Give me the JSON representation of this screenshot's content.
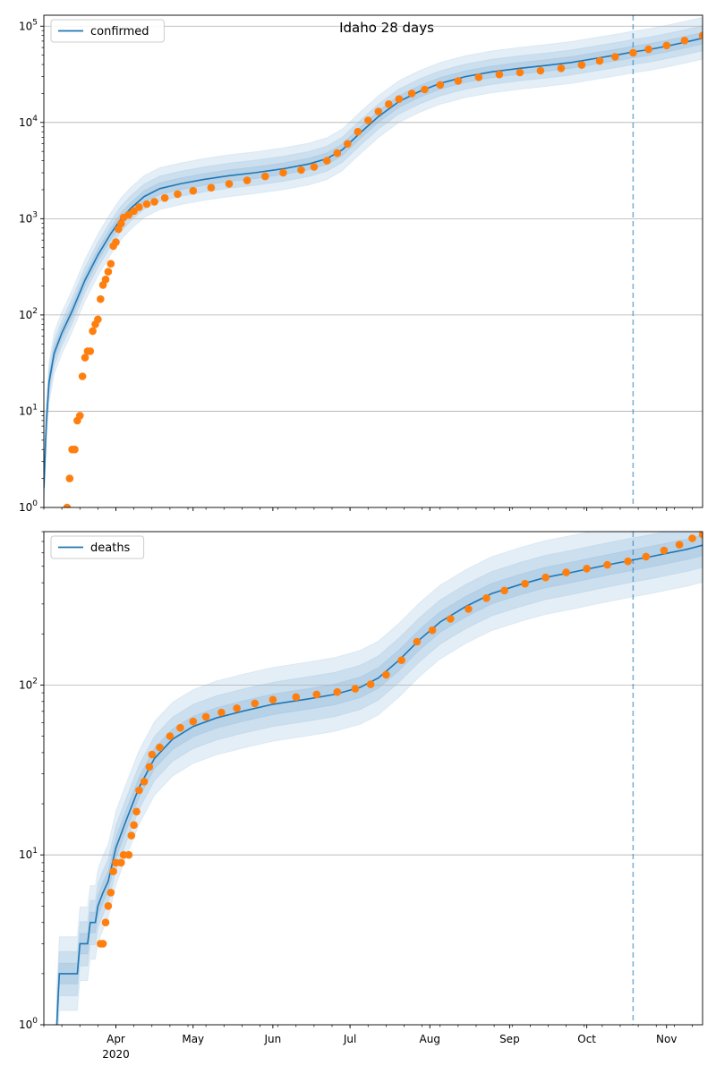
{
  "chart_data": [
    {
      "type": "line",
      "title": "Idaho 28 days",
      "legend": {
        "label": "confirmed",
        "placement": "top-left"
      },
      "y_scale": "log",
      "ylim": [
        1,
        130000
      ],
      "y_ticks": [
        {
          "base": "10",
          "exp": "0",
          "value": 1
        },
        {
          "base": "10",
          "exp": "1",
          "value": 10
        },
        {
          "base": "10",
          "exp": "2",
          "value": 100
        },
        {
          "base": "10",
          "exp": "3",
          "value": 1000
        },
        {
          "base": "10",
          "exp": "4",
          "value": 10000
        },
        {
          "base": "10",
          "exp": "5",
          "value": 100000
        }
      ],
      "xlim": [
        "2020-03-04",
        "2020-11-15"
      ],
      "forecast_start": "2020-10-19",
      "grid": "y-major",
      "model_line": [
        {
          "x": "2020-03-04",
          "y": 1.6
        },
        {
          "x": "2020-03-05",
          "y": 8
        },
        {
          "x": "2020-03-06",
          "y": 20
        },
        {
          "x": "2020-03-08",
          "y": 40
        },
        {
          "x": "2020-03-11",
          "y": 65
        },
        {
          "x": "2020-03-15",
          "y": 110
        },
        {
          "x": "2020-03-20",
          "y": 230
        },
        {
          "x": "2020-03-25",
          "y": 420
        },
        {
          "x": "2020-03-30",
          "y": 700
        },
        {
          "x": "2020-04-03",
          "y": 1000
        },
        {
          "x": "2020-04-07",
          "y": 1300
        },
        {
          "x": "2020-04-12",
          "y": 1700
        },
        {
          "x": "2020-04-18",
          "y": 2050
        },
        {
          "x": "2020-04-26",
          "y": 2300
        },
        {
          "x": "2020-05-05",
          "y": 2550
        },
        {
          "x": "2020-05-15",
          "y": 2800
        },
        {
          "x": "2020-05-25",
          "y": 3000
        },
        {
          "x": "2020-06-05",
          "y": 3300
        },
        {
          "x": "2020-06-15",
          "y": 3700
        },
        {
          "x": "2020-06-22",
          "y": 4200
        },
        {
          "x": "2020-06-28",
          "y": 5200
        },
        {
          "x": "2020-07-05",
          "y": 7800
        },
        {
          "x": "2020-07-12",
          "y": 11500
        },
        {
          "x": "2020-07-20",
          "y": 16500
        },
        {
          "x": "2020-07-28",
          "y": 21000
        },
        {
          "x": "2020-08-05",
          "y": 25500
        },
        {
          "x": "2020-08-15",
          "y": 30000
        },
        {
          "x": "2020-08-25",
          "y": 33500
        },
        {
          "x": "2020-09-05",
          "y": 36500
        },
        {
          "x": "2020-09-15",
          "y": 39000
        },
        {
          "x": "2020-09-25",
          "y": 42000
        },
        {
          "x": "2020-10-05",
          "y": 46500
        },
        {
          "x": "2020-10-15",
          "y": 51500
        },
        {
          "x": "2020-10-19",
          "y": 54000
        },
        {
          "x": "2020-10-25",
          "y": 57000
        },
        {
          "x": "2020-11-01",
          "y": 62000
        },
        {
          "x": "2020-11-08",
          "y": 68000
        },
        {
          "x": "2020-11-15",
          "y": 75000
        }
      ],
      "observed_points": [
        {
          "x": "2020-03-13",
          "y": 1
        },
        {
          "x": "2020-03-14",
          "y": 2
        },
        {
          "x": "2020-03-15",
          "y": 4
        },
        {
          "x": "2020-03-16",
          "y": 4
        },
        {
          "x": "2020-03-17",
          "y": 8
        },
        {
          "x": "2020-03-18",
          "y": 9
        },
        {
          "x": "2020-03-19",
          "y": 23
        },
        {
          "x": "2020-03-20",
          "y": 36
        },
        {
          "x": "2020-03-21",
          "y": 42
        },
        {
          "x": "2020-03-22",
          "y": 42
        },
        {
          "x": "2020-03-23",
          "y": 68
        },
        {
          "x": "2020-03-24",
          "y": 80
        },
        {
          "x": "2020-03-25",
          "y": 90
        },
        {
          "x": "2020-03-26",
          "y": 146
        },
        {
          "x": "2020-03-27",
          "y": 205
        },
        {
          "x": "2020-03-28",
          "y": 234
        },
        {
          "x": "2020-03-29",
          "y": 281
        },
        {
          "x": "2020-03-30",
          "y": 340
        },
        {
          "x": "2020-03-31",
          "y": 520
        },
        {
          "x": "2020-04-01",
          "y": 570
        },
        {
          "x": "2020-04-02",
          "y": 780
        },
        {
          "x": "2020-04-03",
          "y": 890
        },
        {
          "x": "2020-04-04",
          "y": 1030
        },
        {
          "x": "2020-04-06",
          "y": 1100
        },
        {
          "x": "2020-04-08",
          "y": 1200
        },
        {
          "x": "2020-04-10",
          "y": 1320
        },
        {
          "x": "2020-04-13",
          "y": 1420
        },
        {
          "x": "2020-04-16",
          "y": 1500
        },
        {
          "x": "2020-04-20",
          "y": 1640
        },
        {
          "x": "2020-04-25",
          "y": 1800
        },
        {
          "x": "2020-05-01",
          "y": 1950
        },
        {
          "x": "2020-05-08",
          "y": 2100
        },
        {
          "x": "2020-05-15",
          "y": 2300
        },
        {
          "x": "2020-05-22",
          "y": 2500
        },
        {
          "x": "2020-05-29",
          "y": 2750
        },
        {
          "x": "2020-06-05",
          "y": 3000
        },
        {
          "x": "2020-06-12",
          "y": 3200
        },
        {
          "x": "2020-06-17",
          "y": 3450
        },
        {
          "x": "2020-06-22",
          "y": 4000
        },
        {
          "x": "2020-06-26",
          "y": 4800
        },
        {
          "x": "2020-06-30",
          "y": 6000
        },
        {
          "x": "2020-07-04",
          "y": 8000
        },
        {
          "x": "2020-07-08",
          "y": 10500
        },
        {
          "x": "2020-07-12",
          "y": 13000
        },
        {
          "x": "2020-07-16",
          "y": 15500
        },
        {
          "x": "2020-07-20",
          "y": 17500
        },
        {
          "x": "2020-07-25",
          "y": 20000
        },
        {
          "x": "2020-07-30",
          "y": 22000
        },
        {
          "x": "2020-08-05",
          "y": 24500
        },
        {
          "x": "2020-08-12",
          "y": 27000
        },
        {
          "x": "2020-08-20",
          "y": 29500
        },
        {
          "x": "2020-08-28",
          "y": 31500
        },
        {
          "x": "2020-09-05",
          "y": 33000
        },
        {
          "x": "2020-09-13",
          "y": 34500
        },
        {
          "x": "2020-09-21",
          "y": 36500
        },
        {
          "x": "2020-09-29",
          "y": 39500
        },
        {
          "x": "2020-10-06",
          "y": 43500
        },
        {
          "x": "2020-10-12",
          "y": 48000
        },
        {
          "x": "2020-10-19",
          "y": 53000
        },
        {
          "x": "2020-10-25",
          "y": 57500
        },
        {
          "x": "2020-11-01",
          "y": 63000
        },
        {
          "x": "2020-11-08",
          "y": 71000
        },
        {
          "x": "2020-11-15",
          "y": 80000
        }
      ],
      "bands": [
        {
          "factor": 1.15
        },
        {
          "factor": 1.35
        },
        {
          "factor": 1.65
        }
      ]
    },
    {
      "type": "line",
      "title": "",
      "legend": {
        "label": "deaths",
        "placement": "top-left"
      },
      "y_scale": "log",
      "ylim": [
        1,
        800
      ],
      "y_ticks": [
        {
          "base": "10",
          "exp": "0",
          "value": 1
        },
        {
          "base": "10",
          "exp": "1",
          "value": 10
        },
        {
          "base": "10",
          "exp": "2",
          "value": 100
        }
      ],
      "xlim": [
        "2020-03-04",
        "2020-11-15"
      ],
      "x_ticks": [
        {
          "label": "Apr",
          "sublabel": "2020",
          "date": "2020-04-01"
        },
        {
          "label": "May",
          "sublabel": "",
          "date": "2020-05-01"
        },
        {
          "label": "Jun",
          "sublabel": "",
          "date": "2020-06-01"
        },
        {
          "label": "Jul",
          "sublabel": "",
          "date": "2020-07-01"
        },
        {
          "label": "Aug",
          "sublabel": "",
          "date": "2020-08-01"
        },
        {
          "label": "Sep",
          "sublabel": "",
          "date": "2020-09-01"
        },
        {
          "label": "Oct",
          "sublabel": "",
          "date": "2020-10-01"
        },
        {
          "label": "Nov",
          "sublabel": "",
          "date": "2020-11-01"
        }
      ],
      "forecast_start": "2020-10-19",
      "grid": "y-major",
      "model_line": [
        {
          "x": "2020-03-09",
          "y": 1
        },
        {
          "x": "2020-03-10",
          "y": 2
        },
        {
          "x": "2020-03-17",
          "y": 2
        },
        {
          "x": "2020-03-18",
          "y": 3
        },
        {
          "x": "2020-03-21",
          "y": 3
        },
        {
          "x": "2020-03-22",
          "y": 4
        },
        {
          "x": "2020-03-24",
          "y": 4
        },
        {
          "x": "2020-03-25",
          "y": 5
        },
        {
          "x": "2020-03-27",
          "y": 6
        },
        {
          "x": "2020-03-29",
          "y": 7
        },
        {
          "x": "2020-04-01",
          "y": 11
        },
        {
          "x": "2020-04-05",
          "y": 16
        },
        {
          "x": "2020-04-10",
          "y": 25
        },
        {
          "x": "2020-04-16",
          "y": 37
        },
        {
          "x": "2020-04-23",
          "y": 48
        },
        {
          "x": "2020-05-01",
          "y": 57
        },
        {
          "x": "2020-05-10",
          "y": 64
        },
        {
          "x": "2020-05-20",
          "y": 70
        },
        {
          "x": "2020-06-01",
          "y": 77
        },
        {
          "x": "2020-06-15",
          "y": 83
        },
        {
          "x": "2020-06-25",
          "y": 88
        },
        {
          "x": "2020-07-05",
          "y": 97
        },
        {
          "x": "2020-07-12",
          "y": 110
        },
        {
          "x": "2020-07-20",
          "y": 140
        },
        {
          "x": "2020-07-28",
          "y": 185
        },
        {
          "x": "2020-08-05",
          "y": 235
        },
        {
          "x": "2020-08-15",
          "y": 290
        },
        {
          "x": "2020-08-25",
          "y": 345
        },
        {
          "x": "2020-09-05",
          "y": 390
        },
        {
          "x": "2020-09-15",
          "y": 430
        },
        {
          "x": "2020-09-25",
          "y": 460
        },
        {
          "x": "2020-10-05",
          "y": 495
        },
        {
          "x": "2020-10-12",
          "y": 520
        },
        {
          "x": "2020-10-19",
          "y": 545
        },
        {
          "x": "2020-10-26",
          "y": 570
        },
        {
          "x": "2020-11-02",
          "y": 600
        },
        {
          "x": "2020-11-09",
          "y": 630
        },
        {
          "x": "2020-11-15",
          "y": 665
        }
      ],
      "observed_points": [
        {
          "x": "2020-03-26",
          "y": 3
        },
        {
          "x": "2020-03-27",
          "y": 3
        },
        {
          "x": "2020-03-28",
          "y": 4
        },
        {
          "x": "2020-03-29",
          "y": 5
        },
        {
          "x": "2020-03-30",
          "y": 6
        },
        {
          "x": "2020-03-31",
          "y": 8
        },
        {
          "x": "2020-04-01",
          "y": 9
        },
        {
          "x": "2020-04-03",
          "y": 9
        },
        {
          "x": "2020-04-04",
          "y": 10
        },
        {
          "x": "2020-04-06",
          "y": 10
        },
        {
          "x": "2020-04-07",
          "y": 13
        },
        {
          "x": "2020-04-08",
          "y": 15
        },
        {
          "x": "2020-04-09",
          "y": 18
        },
        {
          "x": "2020-04-10",
          "y": 24
        },
        {
          "x": "2020-04-12",
          "y": 27
        },
        {
          "x": "2020-04-14",
          "y": 33
        },
        {
          "x": "2020-04-15",
          "y": 39
        },
        {
          "x": "2020-04-18",
          "y": 43
        },
        {
          "x": "2020-04-22",
          "y": 50
        },
        {
          "x": "2020-04-26",
          "y": 56
        },
        {
          "x": "2020-05-01",
          "y": 61
        },
        {
          "x": "2020-05-06",
          "y": 65
        },
        {
          "x": "2020-05-12",
          "y": 69
        },
        {
          "x": "2020-05-18",
          "y": 73
        },
        {
          "x": "2020-05-25",
          "y": 78
        },
        {
          "x": "2020-06-01",
          "y": 82
        },
        {
          "x": "2020-06-10",
          "y": 85
        },
        {
          "x": "2020-06-18",
          "y": 88
        },
        {
          "x": "2020-06-26",
          "y": 91
        },
        {
          "x": "2020-07-03",
          "y": 95
        },
        {
          "x": "2020-07-09",
          "y": 101
        },
        {
          "x": "2020-07-15",
          "y": 115
        },
        {
          "x": "2020-07-21",
          "y": 140
        },
        {
          "x": "2020-07-27",
          "y": 180
        },
        {
          "x": "2020-08-02",
          "y": 210
        },
        {
          "x": "2020-08-09",
          "y": 245
        },
        {
          "x": "2020-08-16",
          "y": 280
        },
        {
          "x": "2020-08-23",
          "y": 325
        },
        {
          "x": "2020-08-30",
          "y": 360
        },
        {
          "x": "2020-09-07",
          "y": 395
        },
        {
          "x": "2020-09-15",
          "y": 430
        },
        {
          "x": "2020-09-23",
          "y": 460
        },
        {
          "x": "2020-10-01",
          "y": 485
        },
        {
          "x": "2020-10-09",
          "y": 510
        },
        {
          "x": "2020-10-17",
          "y": 535
        },
        {
          "x": "2020-10-24",
          "y": 570
        },
        {
          "x": "2020-10-31",
          "y": 620
        },
        {
          "x": "2020-11-06",
          "y": 670
        },
        {
          "x": "2020-11-11",
          "y": 730
        },
        {
          "x": "2020-11-15",
          "y": 770
        }
      ],
      "bands": [
        {
          "factor": 1.15
        },
        {
          "factor": 1.35
        },
        {
          "factor": 1.65
        }
      ]
    }
  ],
  "colors": {
    "model_line": "#1f77b4",
    "observed": "#ff7f0e",
    "band": "#1f77b4",
    "grid": "#b0b0b0",
    "forecast_line": "#1f77b4"
  }
}
